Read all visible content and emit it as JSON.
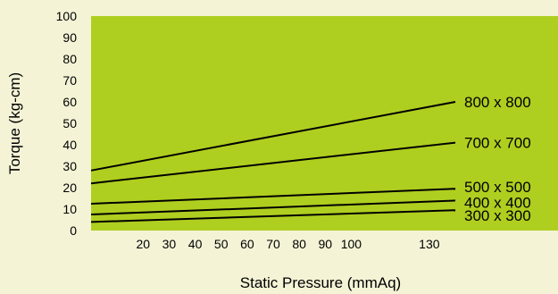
{
  "chart_data": {
    "type": "line",
    "title": "",
    "xlabel": "Static Pressure (mmAq)",
    "ylabel": "Torque (kg-cm)",
    "xlim": [
      0,
      140
    ],
    "ylim": [
      0,
      100
    ],
    "x_ticks": [
      20,
      30,
      40,
      50,
      60,
      70,
      80,
      90,
      100,
      130
    ],
    "y_ticks": [
      0,
      10,
      20,
      30,
      40,
      50,
      60,
      70,
      80,
      90,
      100
    ],
    "grid": false,
    "legend": "inline-right",
    "colors": {
      "page_background": "#f4f3d6",
      "plot_background": "#aecf1f",
      "line": "#000000"
    },
    "series": [
      {
        "name": "800 x 800",
        "x": [
          0,
          140
        ],
        "y": [
          28,
          60
        ]
      },
      {
        "name": "700 x 700",
        "x": [
          0,
          140
        ],
        "y": [
          22,
          41
        ]
      },
      {
        "name": "500 x 500",
        "x": [
          0,
          140
        ],
        "y": [
          12.5,
          19.5
        ]
      },
      {
        "name": "400 x 400",
        "x": [
          0,
          140
        ],
        "y": [
          7.5,
          14
        ]
      },
      {
        "name": "300 x 300",
        "x": [
          0,
          140
        ],
        "y": [
          4,
          9.5
        ]
      }
    ]
  }
}
